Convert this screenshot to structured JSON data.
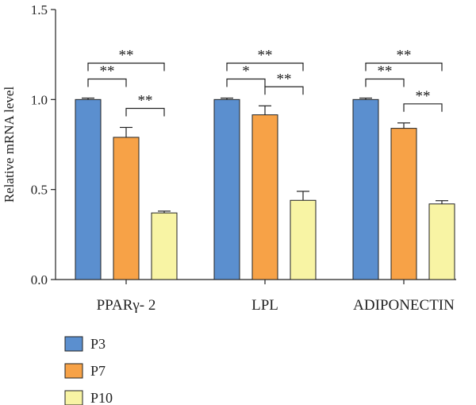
{
  "chart_data": {
    "type": "bar",
    "ylabel": "Relative mRNA level",
    "ylim": [
      0,
      1.5
    ],
    "yticks": [
      "0.0",
      "0.5",
      "1.0",
      "1.5"
    ],
    "categories": [
      "PPARγ- 2",
      "LPL",
      "ADIPONECTIN"
    ],
    "series": [
      {
        "name": "P3",
        "color": "#5b8fcf",
        "values": [
          1.0,
          1.0,
          1.0
        ],
        "errors": [
          0.008,
          0.008,
          0.008
        ]
      },
      {
        "name": "P7",
        "color": "#f7a247",
        "values": [
          0.79,
          0.915,
          0.84
        ],
        "errors": [
          0.055,
          0.05,
          0.03
        ]
      },
      {
        "name": "P10",
        "color": "#f8f4a4",
        "values": [
          0.37,
          0.44,
          0.42
        ],
        "errors": [
          0.01,
          0.05,
          0.018
        ]
      }
    ],
    "significance": [
      {
        "category": 0,
        "from": 0,
        "to": 2,
        "label": "**"
      },
      {
        "category": 0,
        "from": 0,
        "to": 1,
        "label": "**"
      },
      {
        "category": 0,
        "from": 1,
        "to": 2,
        "label": "**"
      },
      {
        "category": 1,
        "from": 0,
        "to": 2,
        "label": "**"
      },
      {
        "category": 1,
        "from": 0,
        "to": 1,
        "label": "*"
      },
      {
        "category": 1,
        "from": 1,
        "to": 2,
        "label": "**"
      },
      {
        "category": 2,
        "from": 0,
        "to": 2,
        "label": "**"
      },
      {
        "category": 2,
        "from": 0,
        "to": 1,
        "label": "**"
      },
      {
        "category": 2,
        "from": 1,
        "to": 2,
        "label": "**"
      }
    ],
    "legend_position": "bottom-left"
  }
}
